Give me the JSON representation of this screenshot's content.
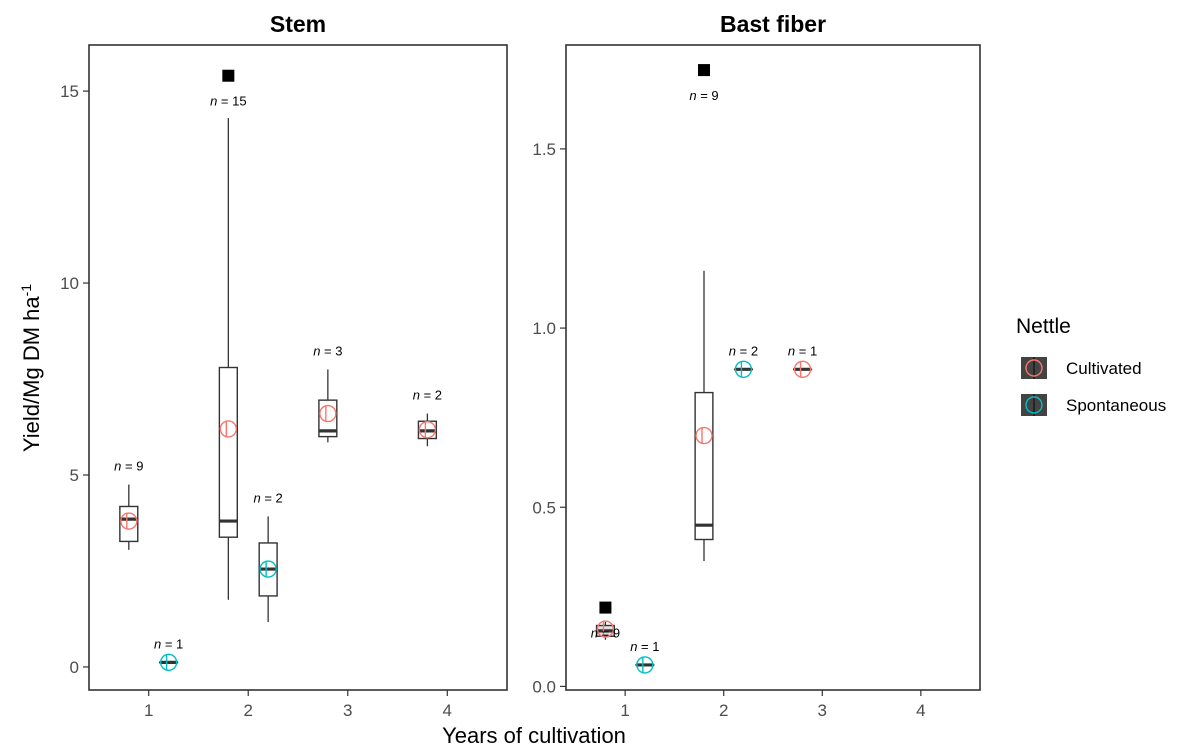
{
  "chart_data": {
    "type": "box",
    "ylabel": "Yield/Mg DM ha",
    "ylabel_superscript": "-1",
    "xlabel": "Years of cultivation",
    "x_categories": [
      "1",
      "2",
      "3",
      "4"
    ],
    "legend": {
      "title": "Nettle",
      "position": "right",
      "entries": [
        {
          "name": "Cultivated",
          "color": "#F8766D"
        },
        {
          "name": "Spontaneous",
          "color": "#00BFC4"
        }
      ]
    },
    "grid": false,
    "panels": [
      {
        "title": "Stem",
        "ylim": [
          -0.6,
          16.2
        ],
        "yticks": [
          0,
          5,
          10,
          15
        ],
        "boxes": [
          {
            "year": 1,
            "group": "Cultivated",
            "n_label": "n = 9",
            "whisker_low": 3.05,
            "q1": 3.27,
            "median": 3.85,
            "q3": 4.18,
            "whisker_high": 4.75,
            "mean": 3.8,
            "outliers": []
          },
          {
            "year": 1,
            "group": "Spontaneous",
            "n_label": "n = 1",
            "whisker_low": 0.12,
            "q1": 0.12,
            "median": 0.12,
            "q3": 0.12,
            "whisker_high": 0.12,
            "mean": 0.12,
            "outliers": []
          },
          {
            "year": 2,
            "group": "Cultivated",
            "n_label": "n = 15",
            "whisker_low": 1.75,
            "q1": 3.38,
            "median": 3.8,
            "q3": 7.8,
            "whisker_high": 14.3,
            "mean": 6.2,
            "outliers": [
              15.4
            ]
          },
          {
            "year": 2,
            "group": "Spontaneous",
            "n_label": "n = 2",
            "whisker_low": 1.17,
            "q1": 1.85,
            "median": 2.55,
            "q3": 3.23,
            "whisker_high": 3.92,
            "mean": 2.55,
            "outliers": []
          },
          {
            "year": 3,
            "group": "Cultivated",
            "n_label": "n = 3",
            "whisker_low": 5.85,
            "q1": 6.0,
            "median": 6.15,
            "q3": 6.95,
            "whisker_high": 7.75,
            "mean": 6.6,
            "outliers": []
          },
          {
            "year": 4,
            "group": "Cultivated",
            "n_label": "n = 2",
            "whisker_low": 5.75,
            "q1": 5.95,
            "median": 6.15,
            "q3": 6.4,
            "whisker_high": 6.6,
            "mean": 6.18,
            "outliers": []
          }
        ]
      },
      {
        "title": "Bast fiber",
        "ylim": [
          -0.01,
          1.79
        ],
        "yticks": [
          0.0,
          0.5,
          1.0,
          1.5
        ],
        "boxes": [
          {
            "year": 1,
            "group": "Cultivated",
            "n_label": "n = 9",
            "whisker_low": 0.13,
            "q1": 0.14,
            "median": 0.155,
            "q3": 0.17,
            "whisker_high": 0.18,
            "mean": 0.16,
            "outliers": [
              0.22
            ]
          },
          {
            "year": 1,
            "group": "Spontaneous",
            "n_label": "n = 1",
            "whisker_low": 0.06,
            "q1": 0.06,
            "median": 0.06,
            "q3": 0.06,
            "whisker_high": 0.06,
            "mean": 0.06,
            "outliers": []
          },
          {
            "year": 2,
            "group": "Cultivated",
            "n_label": "n = 9",
            "whisker_low": 0.35,
            "q1": 0.41,
            "median": 0.45,
            "q3": 0.82,
            "whisker_high": 1.16,
            "mean": 0.7,
            "outliers": [
              1.72
            ]
          },
          {
            "year": 2,
            "group": "Spontaneous",
            "n_label": "n = 2",
            "whisker_low": 0.885,
            "q1": 0.885,
            "median": 0.885,
            "q3": 0.885,
            "whisker_high": 0.885,
            "mean": 0.885,
            "outliers": []
          },
          {
            "year": 3,
            "group": "Cultivated",
            "n_label": "n = 1",
            "whisker_low": 0.885,
            "q1": 0.885,
            "median": 0.885,
            "q3": 0.885,
            "whisker_high": 0.885,
            "mean": 0.885,
            "outliers": []
          }
        ]
      }
    ]
  }
}
